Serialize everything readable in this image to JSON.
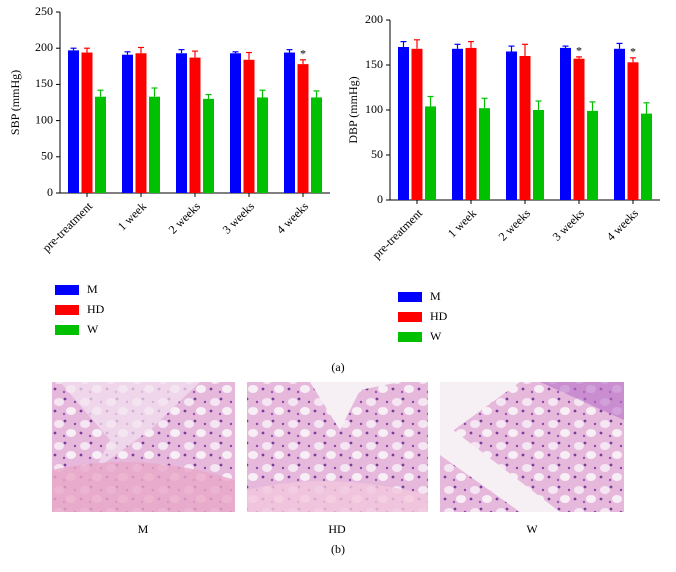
{
  "chart_data": [
    {
      "type": "bar",
      "ylabel": "SBP (mmHg)",
      "categories": [
        "pre-treatment",
        "1 week",
        "2 weeks",
        "3 weeks",
        "4 weeks"
      ],
      "ylim": [
        0,
        250
      ],
      "yticks": [
        0,
        50,
        100,
        150,
        200,
        250
      ],
      "grid": false,
      "series": [
        {
          "name": "M",
          "color": "#0000ff",
          "values": [
            197,
            191,
            193,
            193,
            194
          ],
          "errors": [
            3,
            4,
            5,
            2,
            4
          ]
        },
        {
          "name": "HD",
          "color": "#ff0000",
          "values": [
            194,
            193,
            187,
            184,
            178
          ],
          "errors": [
            6,
            8,
            9,
            10,
            6
          ],
          "markers": [
            null,
            null,
            null,
            null,
            "*"
          ]
        },
        {
          "name": "W",
          "color": "#00c000",
          "values": [
            133,
            133,
            130,
            132,
            132
          ],
          "errors": [
            9,
            12,
            6,
            10,
            9
          ]
        }
      ]
    },
    {
      "type": "bar",
      "ylabel": "DBP (mmHg)",
      "categories": [
        "pre-treatment",
        "1 week",
        "2 weeks",
        "3 weeks",
        "4 weeks"
      ],
      "ylim": [
        0,
        200
      ],
      "yticks": [
        0,
        50,
        100,
        150,
        200
      ],
      "grid": false,
      "series": [
        {
          "name": "M",
          "color": "#0000ff",
          "values": [
            170,
            168,
            165,
            169,
            168
          ],
          "errors": [
            6,
            5,
            6,
            2,
            6
          ]
        },
        {
          "name": "HD",
          "color": "#ff0000",
          "values": [
            168,
            169,
            160,
            157,
            153
          ],
          "errors": [
            10,
            7,
            13,
            2,
            5
          ],
          "markers": [
            null,
            null,
            null,
            "*",
            "*"
          ]
        },
        {
          "name": "W",
          "color": "#00c000",
          "values": [
            104,
            102,
            100,
            99,
            96
          ],
          "errors": [
            11,
            11,
            10,
            10,
            12
          ]
        }
      ]
    }
  ],
  "panel_a": "(a)",
  "panel_b": "(b)",
  "images": [
    {
      "caption": "M"
    },
    {
      "caption": "HD"
    },
    {
      "caption": "W"
    }
  ]
}
